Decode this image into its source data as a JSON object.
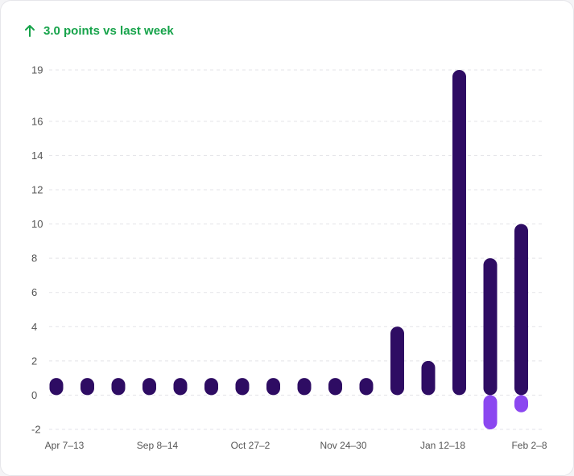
{
  "headline": {
    "text": "3.0 points vs last week",
    "icon": "arrow-up-icon",
    "color": "#16a34a"
  },
  "chart_data": {
    "type": "bar",
    "ylim": [
      -2,
      19
    ],
    "yticks": [
      -2,
      0,
      2,
      4,
      6,
      8,
      10,
      12,
      14,
      16,
      19
    ],
    "xtick_labels": [
      "Apr 7–13",
      "Sep 8–14",
      "Oct 27–2",
      "Nov 24–30",
      "Jan 12–18",
      "Feb 2–8"
    ],
    "xtick_label_bar_index": [
      0,
      3,
      6,
      9,
      12,
      15
    ],
    "grid": true,
    "colors": {
      "positive": "#2e0c63",
      "negative": "#8b47f0"
    },
    "series": [
      {
        "values": [
          1,
          1,
          1,
          1,
          1,
          1,
          1,
          1,
          1,
          1,
          1,
          4,
          2,
          19,
          8,
          10
        ]
      },
      {
        "values": [
          0,
          0,
          0,
          0,
          0,
          0,
          0,
          0,
          0,
          0,
          0,
          0,
          0,
          0,
          -2,
          -1
        ]
      }
    ]
  }
}
